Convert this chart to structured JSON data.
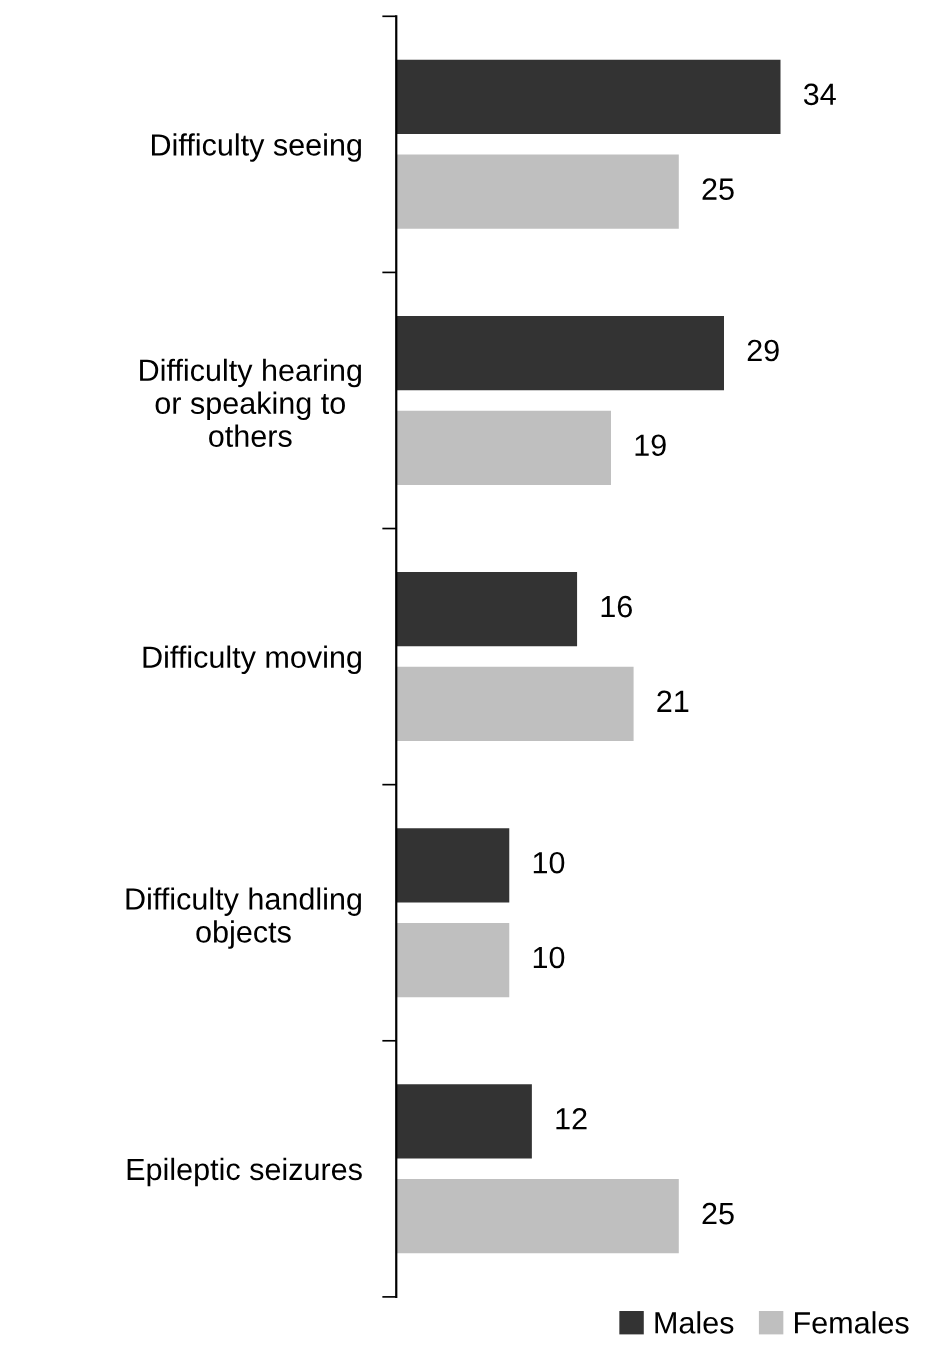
{
  "chart_data": {
    "type": "bar",
    "orientation": "horizontal",
    "categories": [
      "Difficulty seeing",
      "Difficulty hearing\nor speaking to\nothers",
      "Difficulty moving",
      "Difficulty handling\nobjects",
      "Epileptic seizures"
    ],
    "series": [
      {
        "name": "Males",
        "color": "#333333",
        "values": [
          34,
          29,
          16,
          10,
          12
        ]
      },
      {
        "name": "Females",
        "color": "#bfbfbf",
        "values": [
          25,
          19,
          21,
          10,
          25
        ]
      }
    ],
    "data_labels": true,
    "legend": "bottom right",
    "grid": false
  }
}
